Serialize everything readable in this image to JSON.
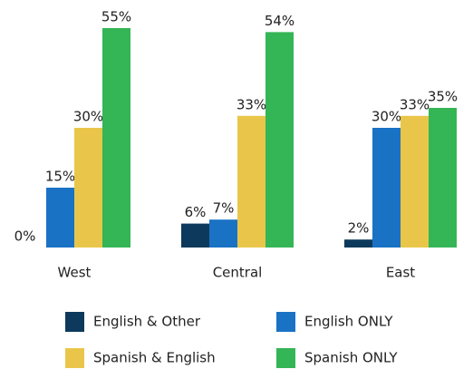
{
  "chart_data": {
    "type": "bar",
    "categories": [
      "West",
      "Central",
      "East"
    ],
    "series": [
      {
        "name": "English & Other",
        "color": "#0d3a5c",
        "values": [
          0,
          6,
          2
        ],
        "value_labels": [
          "0%",
          "6%",
          "2%"
        ]
      },
      {
        "name": "English ONLY",
        "color": "#1a72c4",
        "values": [
          15,
          7,
          30
        ],
        "value_labels": [
          "15%",
          "7%",
          "30%"
        ]
      },
      {
        "name": "Spanish & English",
        "color": "#e9c64a",
        "values": [
          30,
          33,
          33
        ],
        "value_labels": [
          "30%",
          "33%",
          "33%"
        ]
      },
      {
        "name": "Spanish ONLY",
        "color": "#34b556",
        "values": [
          55,
          54,
          35
        ],
        "value_labels": [
          "55%",
          "54%",
          "35%"
        ]
      }
    ]
  }
}
